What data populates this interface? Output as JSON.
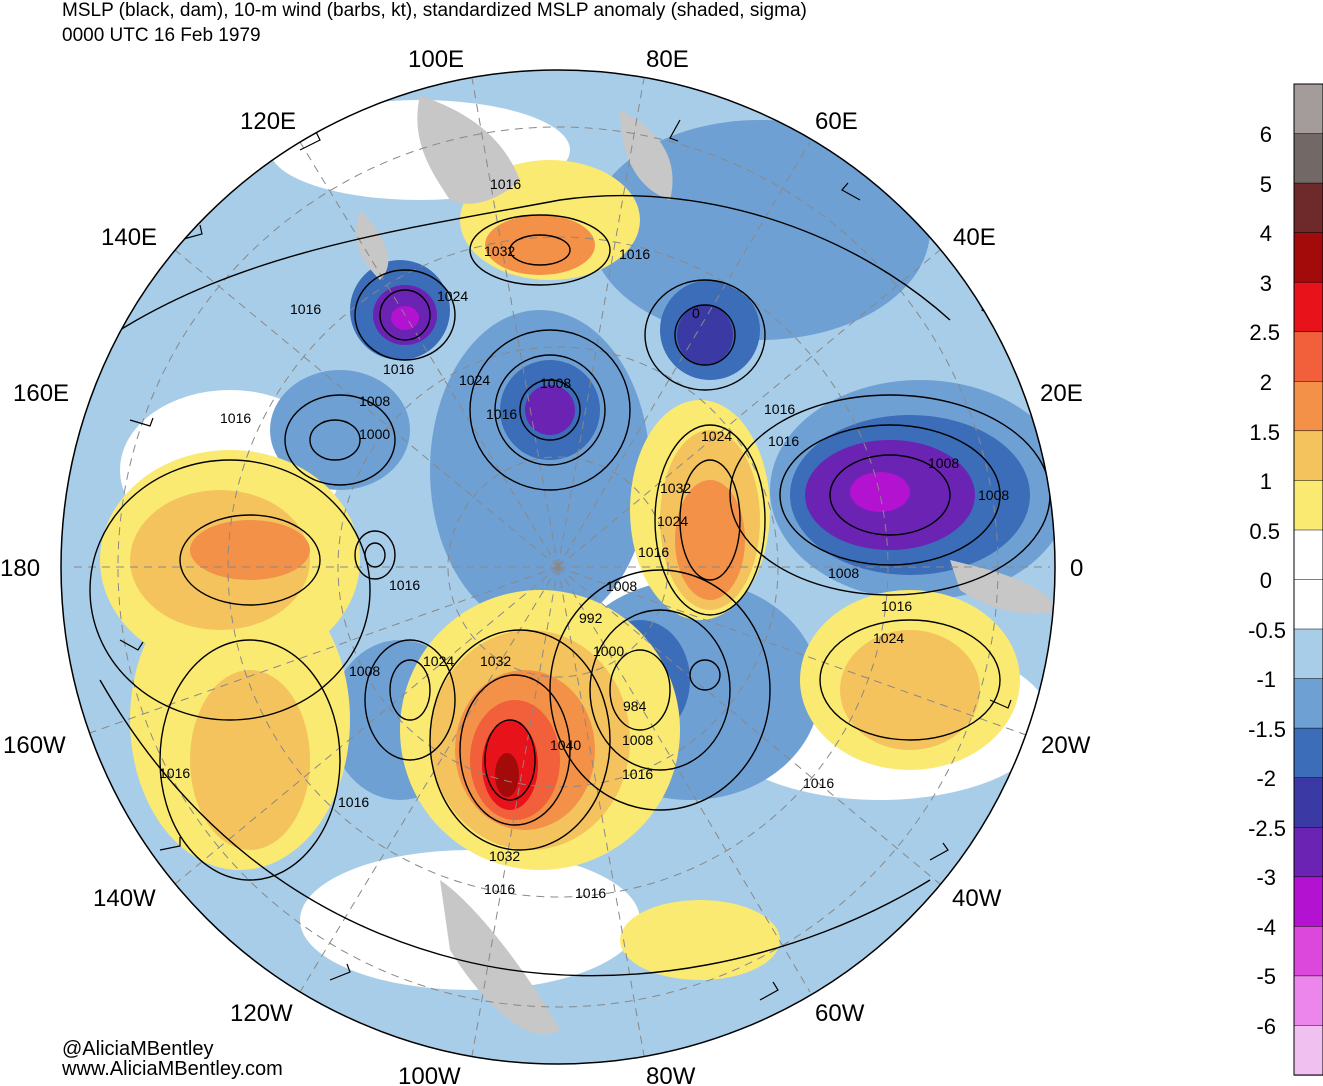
{
  "title": {
    "line1": "MSLP (black, dam), 10-m wind (barbs, kt), standardized MSLP anomaly (shaded, sigma)",
    "line2": "0000 UTC 16 Feb 1979"
  },
  "credit": {
    "handle": "@AliciaMBentley",
    "site": "www.AliciaMBentley.com"
  },
  "longitude_labels": [
    "100E",
    "80E",
    "120E",
    "60E",
    "140E",
    "40E",
    "160E",
    "20E",
    "180",
    "0",
    "160W",
    "20W",
    "140W",
    "40W",
    "120W",
    "60W",
    "100W",
    "80W"
  ],
  "isobar_labels": [
    "1016",
    "1032",
    "1016",
    "1016",
    "1024",
    "0",
    "1016",
    "1024",
    "1008",
    "1016",
    "1016",
    "1016",
    "1008",
    "1000",
    "1024",
    "1016",
    "1032",
    "1024",
    "1008",
    "1008",
    "1016",
    "1008",
    "1008",
    "992",
    "1000",
    "1008",
    "1024",
    "1032",
    "984",
    "1040",
    "1008",
    "1016",
    "1016",
    "1016",
    "1024",
    "1016",
    "1032",
    "1016",
    "1016",
    "1016",
    "1016"
  ],
  "colorbar": {
    "labels": [
      "6",
      "5",
      "4",
      "3",
      "2.5",
      "2",
      "1.5",
      "1",
      "0.5",
      "0",
      "-0.5",
      "-1",
      "-1.5",
      "-2",
      "-2.5",
      "-3",
      "-4",
      "-5",
      "-6"
    ],
    "colors": [
      "#a39c9a",
      "#726865",
      "#6e2a2a",
      "#a30a0a",
      "#e8121a",
      "#f1603a",
      "#f39148",
      "#f4c35d",
      "#faea72",
      "#ffffff",
      "#ffffff",
      "#a8cde8",
      "#6fa0d4",
      "#3b6db8",
      "#3b3aa5",
      "#6a23b3",
      "#b312d0",
      "#dc48dc",
      "#ec86ec",
      "#f0c0f0"
    ]
  },
  "anomaly_features": [
    {
      "type": "negative",
      "peak": "-4"
    },
    {
      "type": "positive",
      "peak": "3"
    }
  ]
}
